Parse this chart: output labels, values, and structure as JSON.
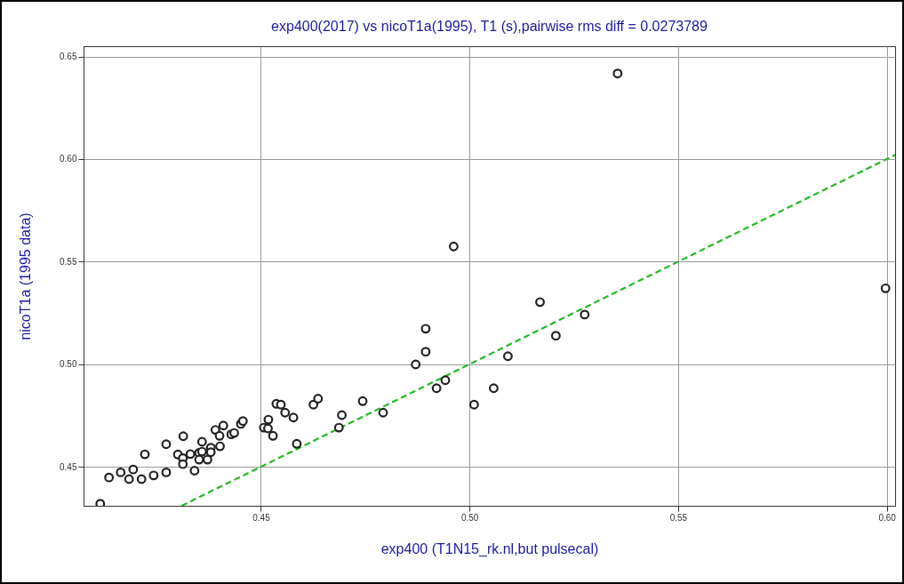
{
  "chart_data": {
    "type": "scatter",
    "title": "exp400(2017) vs nicoT1a(1995), T1 (s),pairwise rms diff = 0.0273789",
    "xlabel": "exp400 (T1N15_rk.nl,but pulsecal)",
    "ylabel": "nicoT1a (1995 data)",
    "xlim": [
      0.4075,
      0.602
    ],
    "ylim": [
      0.431,
      0.655
    ],
    "xticks": [
      0.45,
      {
        "value": 0.5,
        "label": "0.50"
      },
      0.55,
      {
        "value": 0.6,
        "label": "0.60"
      }
    ],
    "yticks": [
      0.45,
      {
        "value": 0.5,
        "label": "0.50"
      },
      0.55,
      {
        "value": 0.6,
        "label": "0.60"
      },
      0.65
    ],
    "grid": true,
    "series": [
      {
        "marker": "circle",
        "color": "#222222",
        "x": [
          0.4115,
          0.4136,
          0.4164,
          0.4184,
          0.4194,
          0.4214,
          0.4222,
          0.4243,
          0.4273,
          0.4273,
          0.4314,
          0.4301,
          0.4313,
          0.4313,
          0.4331,
          0.4341,
          0.4359,
          0.4352,
          0.4352,
          0.4359,
          0.4372,
          0.438,
          0.438,
          0.4391,
          0.4401,
          0.4402,
          0.441,
          0.4429,
          0.4436,
          0.4452,
          0.4457,
          0.4537,
          0.4548,
          0.4558,
          0.4578,
          0.4518,
          0.4507,
          0.4517,
          0.4529,
          0.4586,
          0.4626,
          0.4637,
          0.4687,
          0.4694,
          0.4744,
          0.4793,
          0.4871,
          0.4895,
          0.4895,
          0.4921,
          0.4942,
          0.4962,
          0.5011,
          0.5058,
          0.5092,
          0.5169,
          0.5207,
          0.5276,
          0.5355,
          0.5997
        ],
        "values": [
          0.432,
          0.4448,
          0.4473,
          0.444,
          0.4487,
          0.444,
          0.4561,
          0.4458,
          0.4473,
          0.461,
          0.4649,
          0.456,
          0.4542,
          0.4513,
          0.4562,
          0.4481,
          0.4622,
          0.4568,
          0.4535,
          0.4574,
          0.4535,
          0.4593,
          0.4571,
          0.468,
          0.4651,
          0.46,
          0.4701,
          0.4658,
          0.4665,
          0.4709,
          0.4723,
          0.4807,
          0.4803,
          0.4764,
          0.474,
          0.473,
          0.4691,
          0.4687,
          0.4651,
          0.4612,
          0.4803,
          0.4832,
          0.4691,
          0.4752,
          0.482,
          0.4764,
          0.4999,
          0.5173,
          0.5061,
          0.4883,
          0.4922,
          0.5574,
          0.4803,
          0.4883,
          0.5039,
          0.5303,
          0.5139,
          0.5242,
          0.6417,
          0.537
        ]
      },
      {
        "type": "line",
        "color": "#22bb22",
        "line_style": "dashed",
        "x": [
          0.431,
          0.602
        ],
        "values": [
          0.431,
          0.602
        ]
      }
    ]
  }
}
